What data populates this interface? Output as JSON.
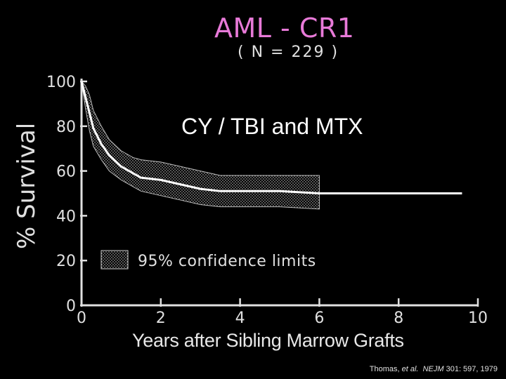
{
  "chart_data": {
    "type": "line",
    "title": "AML - CR1",
    "subtitle": "( N = 229 )",
    "annotation": "CY / TBI and MTX",
    "xlabel": "Years after Sibling Marrow Grafts",
    "ylabel": "% Survival",
    "xlim": [
      0,
      10
    ],
    "ylim": [
      0,
      100
    ],
    "x_ticks": [
      0,
      2,
      4,
      6,
      8,
      10
    ],
    "y_ticks": [
      0,
      20,
      40,
      60,
      80,
      100
    ],
    "legend": "95% confidence limits",
    "series": [
      {
        "name": "Survival",
        "x": [
          0,
          0.1,
          0.2,
          0.3,
          0.5,
          0.7,
          1.0,
          1.3,
          1.5,
          2.0,
          2.5,
          3.0,
          3.5,
          4.0,
          5.0,
          6.0,
          7.0,
          8.0,
          9.0,
          9.6
        ],
        "values": [
          100,
          93,
          86,
          79,
          72,
          67,
          62,
          59,
          57,
          56,
          54,
          52,
          51,
          51,
          51,
          50,
          50,
          50,
          50,
          50
        ]
      },
      {
        "name": "Upper 95% limit",
        "x": [
          0,
          0.1,
          0.2,
          0.3,
          0.5,
          0.7,
          1.0,
          1.3,
          1.5,
          2.0,
          2.5,
          3.0,
          3.5,
          4.0,
          5.0,
          6.0
        ],
        "values": [
          100,
          98,
          94,
          87,
          80,
          74,
          69,
          66,
          65,
          64,
          62,
          60,
          58,
          58,
          58,
          58
        ]
      },
      {
        "name": "Lower 95% limit",
        "x": [
          0,
          0.1,
          0.2,
          0.3,
          0.5,
          0.7,
          1.0,
          1.3,
          1.5,
          2.0,
          2.5,
          3.0,
          3.5,
          4.0,
          5.0,
          6.0
        ],
        "values": [
          100,
          88,
          78,
          71,
          65,
          60,
          56,
          53,
          51,
          49,
          47,
          45,
          44,
          44,
          44,
          43
        ]
      }
    ]
  },
  "citation": {
    "authors": "Thomas,",
    "etal": "et al.",
    "journal": "NEJM",
    "ref": "301: 597, 1979"
  },
  "colors": {
    "background": "#000000",
    "title": "#e87ad8",
    "line": "#ffffff"
  }
}
